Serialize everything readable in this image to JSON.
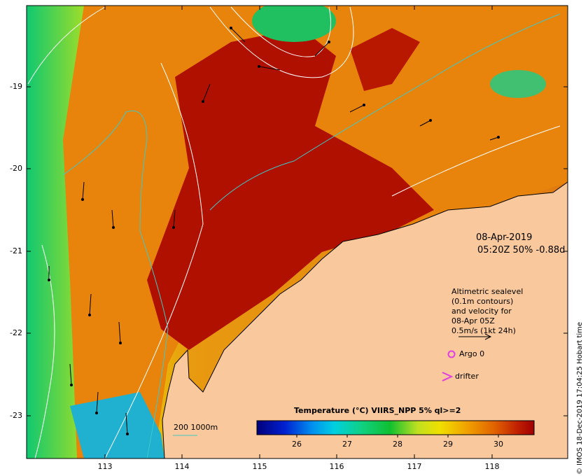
{
  "map": {
    "date": "08-Apr-2019",
    "time_info": "05:20Z  50% -0.88d",
    "lat_ticks": [
      "-19",
      "-20",
      "-21",
      "-22",
      "-23"
    ],
    "lon_ticks": [
      "113",
      "114",
      "115",
      "116",
      "117",
      "118"
    ],
    "legend": {
      "altimetric_line1": "Altimetric sealevel",
      "altimetric_line2": "(0.1m contours)",
      "altimetric_line3": "and velocity for",
      "altimetric_line4": "08-Apr 05Z",
      "altimetric_line5": "0.5m/s (1kt 24h)",
      "argo": "Argo 0",
      "drifter": "drifter"
    },
    "isobath_label": "200  1000m",
    "colorbar": {
      "title": "Temperature (°C) VIIRS_NPP 5% ql>=2",
      "ticks": [
        "26",
        "27",
        "28",
        "29",
        "30"
      ],
      "min": 25,
      "max": 30.5
    },
    "copyright": "© IMOS 18-Dec-2019 17:04:25 Hobart time",
    "colors": {
      "land": "#f9c89c",
      "isobath": "#40c8c8",
      "marker": "#e040e0",
      "contour": "#ffffff"
    }
  }
}
